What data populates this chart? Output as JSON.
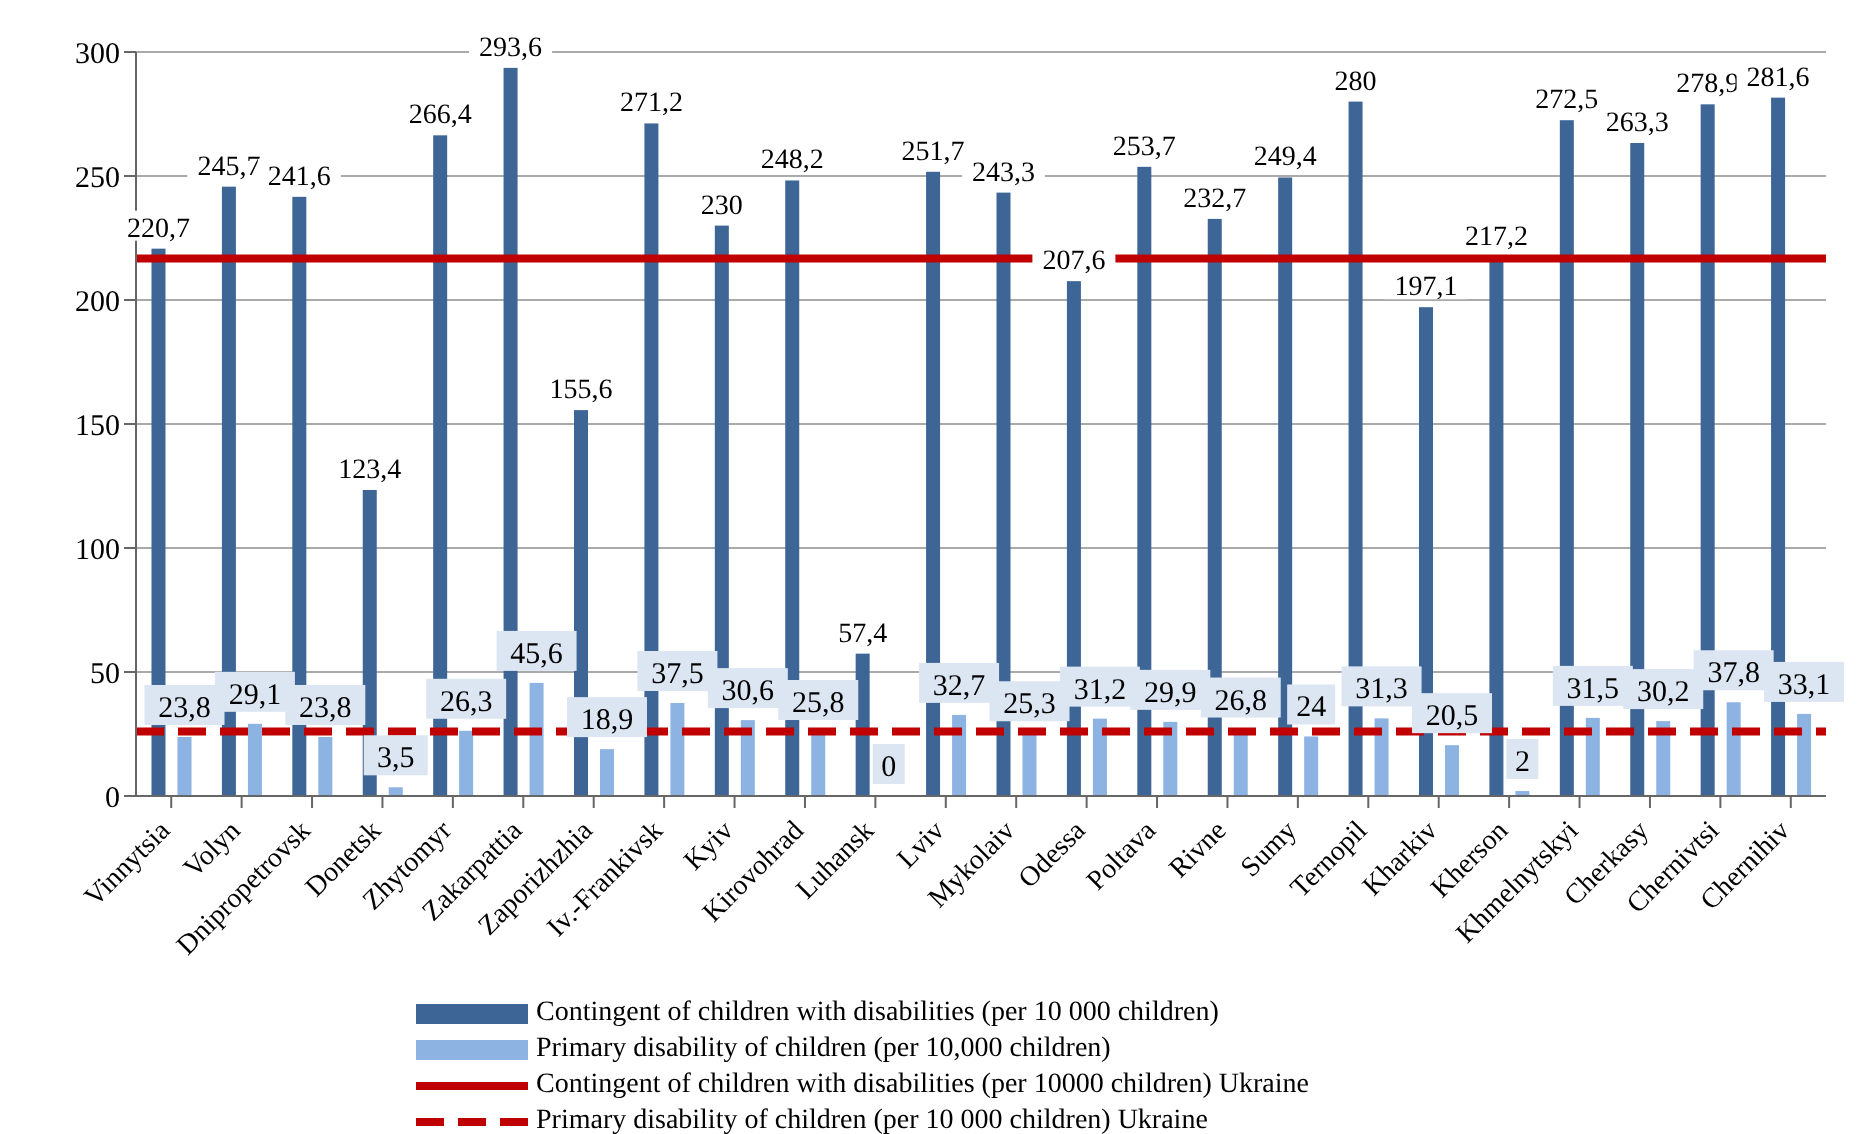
{
  "chart_data": {
    "type": "bar",
    "categories": [
      "Vinnytsia",
      "Volyn",
      "Dnipropetrovsk",
      "Donetsk",
      "Zhytomyr",
      "Zakarpattia",
      "Zaporizhzhia",
      "Iv.-Frankivsk",
      "Kyiv",
      "Kirovohrad",
      "Luhansk",
      "Lviv",
      "Mykolaiv",
      "Odessa",
      "Poltava",
      "Rivne",
      "Sumy",
      "Ternopil",
      "Kharkiv",
      "Kherson",
      "Khmelnytskyi",
      "Cherkasy",
      "Chernivtsi",
      "Chernihiv"
    ],
    "series": [
      {
        "name": "Contingent of children with disabilities (per 10 000 children)",
        "color": "#3d6596",
        "values": [
          220.7,
          245.7,
          241.6,
          123.4,
          266.4,
          293.6,
          155.6,
          271.2,
          230,
          248.2,
          57.4,
          251.7,
          243.3,
          207.6,
          253.7,
          232.7,
          249.4,
          280,
          197.1,
          217.2,
          272.5,
          263.3,
          278.9,
          281.6
        ],
        "value_labels": [
          "220,7",
          "245,7",
          "241,6",
          "123,4",
          "266,4",
          "293,6",
          "155,6",
          "271,2",
          "230",
          "248,2",
          "57,4",
          "251,7",
          "243,3",
          "207,6",
          "253,7",
          "232,7",
          "249,4",
          "280",
          "197,1",
          "217,2",
          "272,5",
          "263,3",
          "278,9",
          "281,6"
        ]
      },
      {
        "name": "Primary disability of children (per 10,000 children)",
        "color": "#8db3e2",
        "values": [
          23.8,
          29.1,
          23.8,
          3.5,
          26.3,
          45.6,
          18.9,
          37.5,
          30.6,
          25.8,
          0,
          32.7,
          25.3,
          31.2,
          29.9,
          26.8,
          24,
          31.3,
          20.5,
          2,
          31.5,
          30.2,
          37.8,
          33.1
        ],
        "value_labels": [
          "23,8",
          "29,1",
          "23,8",
          "3,5",
          "26,3",
          "45,6",
          "18,9",
          "37,5",
          "30,6",
          "25,8",
          "0",
          "32,7",
          "25,3",
          "31,2",
          "29,9",
          "26,8",
          "24",
          "31,3",
          "20,5",
          "2",
          "31,5",
          "30,2",
          "37,8",
          "33,1"
        ]
      }
    ],
    "ref_lines": [
      {
        "axis": "y",
        "value": 216.7,
        "label": "Contingent of children with disabilities (per 10000 children) Ukraine",
        "color": "#c00000",
        "line_style": "solid"
      },
      {
        "axis": "y",
        "value": 26,
        "label": "Primary disability of children (per 10 000 children) Ukraine",
        "color": "#c00000",
        "line_style": "dashed"
      }
    ],
    "ylim": [
      0,
      300
    ],
    "yticks": [
      0,
      50,
      100,
      150,
      200,
      250,
      300
    ],
    "grid": "y",
    "legend": "bottom"
  }
}
